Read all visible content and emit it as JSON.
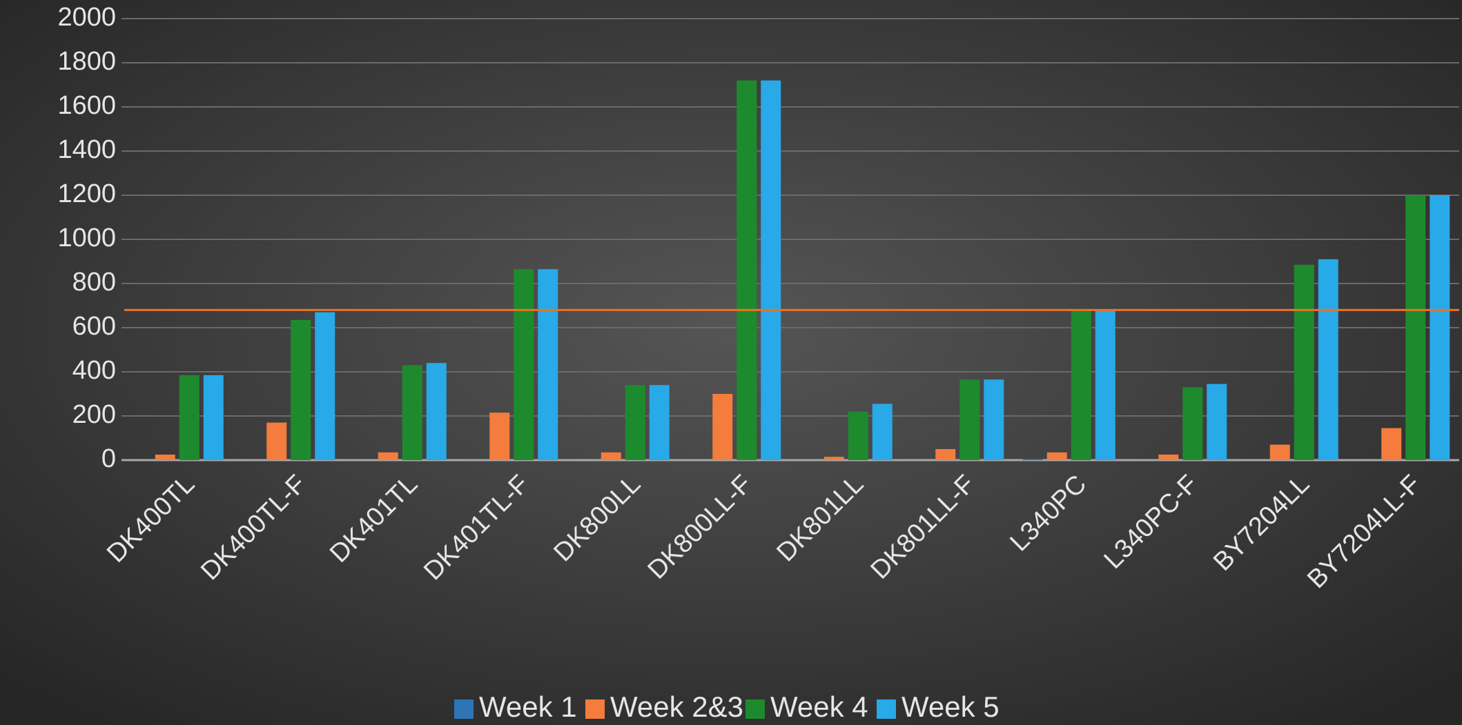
{
  "chart_data": {
    "type": "bar",
    "categories": [
      "DK400TL",
      "DK400TL-F",
      "DK401TL",
      "DK401TL-F",
      "DK800LL",
      "DK800LL-F",
      "DK801LL",
      "DK801LL-F",
      "L340PC",
      "L340PC-F",
      "BY7204LL",
      "BY7204LL-F"
    ],
    "series": [
      {
        "name": "Week 1",
        "color": "#2e75b6",
        "values": [
          0,
          0,
          0,
          0,
          0,
          0,
          0,
          0,
          5,
          0,
          0,
          0
        ]
      },
      {
        "name": "Week 2&3",
        "color": "#f47c3c",
        "values": [
          25,
          170,
          35,
          215,
          35,
          300,
          15,
          50,
          35,
          25,
          70,
          145
        ]
      },
      {
        "name": "Week 4",
        "color": "#1e8a2e",
        "values": [
          385,
          635,
          430,
          865,
          340,
          1720,
          220,
          365,
          680,
          330,
          885,
          1200
        ]
      },
      {
        "name": "Week 5",
        "color": "#28a9e8",
        "values": [
          385,
          670,
          440,
          865,
          340,
          1720,
          255,
          365,
          680,
          345,
          910,
          1200
        ]
      }
    ],
    "ylim": [
      0,
      2000
    ],
    "yticks": [
      0,
      200,
      400,
      600,
      800,
      1000,
      1200,
      1400,
      1600,
      1800,
      2000
    ],
    "grid": true,
    "reference_line": {
      "value": 680,
      "color": "#f07020"
    },
    "legend": "bottom"
  }
}
